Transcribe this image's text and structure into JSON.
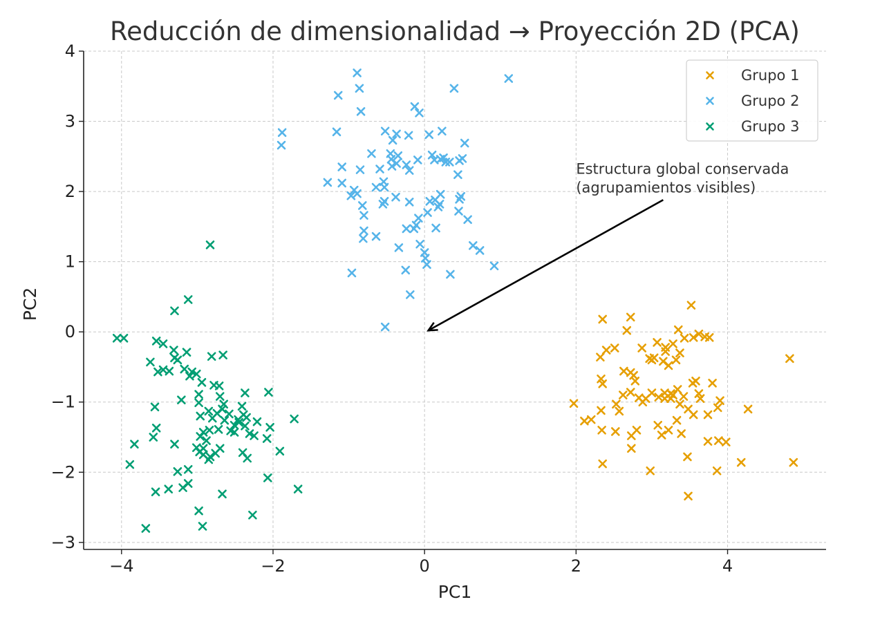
{
  "chart_data": {
    "type": "scatter",
    "title": "Reducción de dimensionalidad → Proyección 2D (PCA)",
    "xlabel": "PC1",
    "ylabel": "PC2",
    "xlim": [
      -4.5,
      5.3
    ],
    "ylim": [
      -3.1,
      4.0
    ],
    "xticks": [
      -4,
      -2,
      0,
      2,
      4
    ],
    "yticks": [
      -3,
      -2,
      -1,
      0,
      1,
      2,
      3,
      4
    ],
    "xtick_labels": [
      "−4",
      "−2",
      "0",
      "2",
      "4"
    ],
    "ytick_labels": [
      "−3",
      "−2",
      "−1",
      "0",
      "1",
      "2",
      "3",
      "4"
    ],
    "grid": true,
    "legend_position": "top-right",
    "marker": "x",
    "series": [
      {
        "name": "Grupo 1",
        "color": "#E69F00",
        "points": [
          [
            2.35,
            0.18
          ],
          [
            2.72,
            0.21
          ],
          [
            3.52,
            0.38
          ],
          [
            2.67,
            0.02
          ],
          [
            3.03,
            -0.37
          ],
          [
            2.32,
            -0.36
          ],
          [
            2.4,
            -0.26
          ],
          [
            2.51,
            -0.23
          ],
          [
            2.87,
            -0.23
          ],
          [
            3.07,
            -0.15
          ],
          [
            3.18,
            -0.22
          ],
          [
            3.35,
            0.03
          ],
          [
            3.28,
            -0.17
          ],
          [
            3.43,
            -0.09
          ],
          [
            3.55,
            -0.08
          ],
          [
            3.62,
            -0.03
          ],
          [
            3.7,
            -0.07
          ],
          [
            3.76,
            -0.08
          ],
          [
            4.82,
            -0.38
          ],
          [
            3.0,
            -0.4
          ],
          [
            3.15,
            -0.42
          ],
          [
            3.32,
            -0.4
          ],
          [
            3.37,
            -0.3
          ],
          [
            3.22,
            -0.48
          ],
          [
            2.63,
            -0.56
          ],
          [
            2.72,
            -0.58
          ],
          [
            2.76,
            -0.62
          ],
          [
            2.78,
            -0.7
          ],
          [
            2.33,
            -0.67
          ],
          [
            2.35,
            -0.74
          ],
          [
            3.54,
            -0.73
          ],
          [
            3.58,
            -0.7
          ],
          [
            3.8,
            -0.73
          ],
          [
            2.62,
            -0.9
          ],
          [
            2.72,
            -0.86
          ],
          [
            2.83,
            -0.94
          ],
          [
            2.92,
            -0.95
          ],
          [
            3.0,
            -0.87
          ],
          [
            3.09,
            -0.93
          ],
          [
            3.17,
            -0.95
          ],
          [
            3.25,
            -0.88
          ],
          [
            3.34,
            -0.82
          ],
          [
            3.42,
            -0.92
          ],
          [
            3.62,
            -0.88
          ],
          [
            3.64,
            -0.95
          ],
          [
            3.9,
            -0.98
          ],
          [
            1.97,
            -1.02
          ],
          [
            2.53,
            -1.03
          ],
          [
            2.88,
            -1.0
          ],
          [
            3.17,
            -0.87
          ],
          [
            3.28,
            -0.9
          ],
          [
            3.37,
            -1.03
          ],
          [
            3.48,
            -1.1
          ],
          [
            3.55,
            -1.18
          ],
          [
            3.74,
            -1.18
          ],
          [
            3.87,
            -1.08
          ],
          [
            4.27,
            -1.1
          ],
          [
            2.11,
            -1.27
          ],
          [
            2.2,
            -1.25
          ],
          [
            2.33,
            -1.12
          ],
          [
            2.57,
            -1.13
          ],
          [
            3.08,
            -1.33
          ],
          [
            3.13,
            -1.47
          ],
          [
            3.22,
            -1.4
          ],
          [
            3.33,
            -1.26
          ],
          [
            3.39,
            -1.45
          ],
          [
            2.34,
            -1.4
          ],
          [
            2.52,
            -1.42
          ],
          [
            2.73,
            -1.48
          ],
          [
            2.8,
            -1.4
          ],
          [
            3.74,
            -1.56
          ],
          [
            3.88,
            -1.55
          ],
          [
            3.98,
            -1.57
          ],
          [
            2.73,
            -1.66
          ],
          [
            3.47,
            -1.78
          ],
          [
            2.35,
            -1.88
          ],
          [
            4.18,
            -1.86
          ],
          [
            4.87,
            -1.86
          ],
          [
            2.98,
            -1.98
          ],
          [
            3.86,
            -1.98
          ],
          [
            3.48,
            -2.34
          ],
          [
            2.97,
            -0.38
          ],
          [
            3.18,
            -0.28
          ],
          [
            3.25,
            -0.95
          ]
        ]
      },
      {
        "name": "Grupo 2",
        "color": "#56B4E9",
        "points": [
          [
            -0.89,
            3.69
          ],
          [
            1.11,
            3.61
          ],
          [
            -0.86,
            3.47
          ],
          [
            0.39,
            3.47
          ],
          [
            -1.14,
            3.37
          ],
          [
            -0.13,
            3.21
          ],
          [
            -0.07,
            3.12
          ],
          [
            -0.84,
            3.14
          ],
          [
            -1.16,
            2.85
          ],
          [
            -0.52,
            2.86
          ],
          [
            -0.21,
            2.8
          ],
          [
            0.06,
            2.81
          ],
          [
            0.23,
            2.86
          ],
          [
            -1.88,
            2.84
          ],
          [
            -1.89,
            2.66
          ],
          [
            -0.42,
            2.73
          ],
          [
            0.53,
            2.69
          ],
          [
            -0.7,
            2.54
          ],
          [
            -0.45,
            2.54
          ],
          [
            -0.35,
            2.51
          ],
          [
            -0.37,
            2.4
          ],
          [
            -0.24,
            2.38
          ],
          [
            -0.44,
            2.46
          ],
          [
            0.1,
            2.52
          ],
          [
            0.13,
            2.45
          ],
          [
            0.21,
            2.46
          ],
          [
            0.25,
            2.48
          ],
          [
            0.28,
            2.42
          ],
          [
            0.46,
            2.44
          ],
          [
            0.33,
            2.42
          ],
          [
            -1.09,
            2.35
          ],
          [
            -0.85,
            2.31
          ],
          [
            -0.59,
            2.32
          ],
          [
            -0.2,
            2.3
          ],
          [
            -0.09,
            2.45
          ],
          [
            0.5,
            2.47
          ],
          [
            0.44,
            2.24
          ],
          [
            -1.28,
            2.13
          ],
          [
            -1.09,
            2.12
          ],
          [
            -0.54,
            2.14
          ],
          [
            -0.64,
            2.06
          ],
          [
            -0.53,
            2.06
          ],
          [
            -0.93,
            2.02
          ],
          [
            -0.97,
            1.94
          ],
          [
            -0.89,
            1.97
          ],
          [
            -0.38,
            1.92
          ],
          [
            -0.53,
            1.86
          ],
          [
            -0.55,
            1.82
          ],
          [
            -0.82,
            1.8
          ],
          [
            -0.2,
            1.85
          ],
          [
            0.07,
            1.86
          ],
          [
            0.14,
            1.88
          ],
          [
            0.2,
            1.82
          ],
          [
            0.18,
            1.78
          ],
          [
            0.21,
            1.96
          ],
          [
            0.46,
            1.89
          ],
          [
            0.45,
            1.72
          ],
          [
            0.57,
            1.6
          ],
          [
            -0.8,
            1.66
          ],
          [
            0.04,
            1.7
          ],
          [
            -0.08,
            1.62
          ],
          [
            -0.11,
            1.52
          ],
          [
            -0.14,
            1.47
          ],
          [
            -0.24,
            1.47
          ],
          [
            0.15,
            1.48
          ],
          [
            -0.8,
            1.44
          ],
          [
            -0.64,
            1.36
          ],
          [
            -0.81,
            1.33
          ],
          [
            -0.34,
            1.2
          ],
          [
            -0.06,
            1.25
          ],
          [
            0.0,
            1.13
          ],
          [
            0.01,
            1.05
          ],
          [
            0.64,
            1.23
          ],
          [
            0.73,
            1.16
          ],
          [
            0.03,
            0.96
          ],
          [
            0.92,
            0.94
          ],
          [
            -0.25,
            0.88
          ],
          [
            0.34,
            0.82
          ],
          [
            -0.96,
            0.84
          ],
          [
            -0.19,
            0.53
          ],
          [
            -0.52,
            0.07
          ],
          [
            -0.37,
            2.82
          ],
          [
            0.48,
            1.93
          ],
          [
            -0.43,
            2.36
          ]
        ]
      },
      {
        "name": "Grupo 3",
        "color": "#009E73",
        "points": [
          [
            -2.83,
            1.24
          ],
          [
            -3.12,
            0.46
          ],
          [
            -3.3,
            0.3
          ],
          [
            -4.06,
            -0.09
          ],
          [
            -3.97,
            -0.09
          ],
          [
            -3.54,
            -0.13
          ],
          [
            -3.45,
            -0.17
          ],
          [
            -3.31,
            -0.26
          ],
          [
            -3.14,
            -0.29
          ],
          [
            -2.81,
            -0.35
          ],
          [
            -2.66,
            -0.33
          ],
          [
            -3.62,
            -0.43
          ],
          [
            -3.3,
            -0.37
          ],
          [
            -3.26,
            -0.4
          ],
          [
            -3.45,
            -0.54
          ],
          [
            -3.52,
            -0.57
          ],
          [
            -3.37,
            -0.56
          ],
          [
            -3.17,
            -0.53
          ],
          [
            -3.07,
            -0.57
          ],
          [
            -3.01,
            -0.6
          ],
          [
            -3.1,
            -0.63
          ],
          [
            -2.94,
            -0.72
          ],
          [
            -2.78,
            -0.76
          ],
          [
            -2.71,
            -0.77
          ],
          [
            -2.7,
            -0.92
          ],
          [
            -2.98,
            -0.89
          ],
          [
            -3.21,
            -0.97
          ],
          [
            -2.98,
            -1.01
          ],
          [
            -2.67,
            -1.1
          ],
          [
            -2.65,
            -1.03
          ],
          [
            -2.41,
            -1.06
          ],
          [
            -2.39,
            -1.18
          ],
          [
            -2.06,
            -0.86
          ],
          [
            -2.37,
            -0.87
          ],
          [
            -3.56,
            -1.07
          ],
          [
            -2.85,
            -1.13
          ],
          [
            -2.74,
            -1.16
          ],
          [
            -2.58,
            -1.17
          ],
          [
            -2.46,
            -1.25
          ],
          [
            -2.35,
            -1.22
          ],
          [
            -2.96,
            -1.2
          ],
          [
            -2.8,
            -1.23
          ],
          [
            -2.64,
            -1.26
          ],
          [
            -2.51,
            -1.33
          ],
          [
            -2.45,
            -1.29
          ],
          [
            -2.37,
            -1.34
          ],
          [
            -2.21,
            -1.28
          ],
          [
            -2.04,
            -1.36
          ],
          [
            -1.72,
            -1.24
          ],
          [
            -3.54,
            -1.37
          ],
          [
            -3.58,
            -1.5
          ],
          [
            -2.92,
            -1.43
          ],
          [
            -2.84,
            -1.4
          ],
          [
            -2.72,
            -1.39
          ],
          [
            -2.56,
            -1.41
          ],
          [
            -2.51,
            -1.43
          ],
          [
            -2.31,
            -1.45
          ],
          [
            -2.25,
            -1.48
          ],
          [
            -2.08,
            -1.52
          ],
          [
            -2.96,
            -1.49
          ],
          [
            -2.88,
            -1.55
          ],
          [
            -3.83,
            -1.6
          ],
          [
            -3.3,
            -1.6
          ],
          [
            -3.01,
            -1.65
          ],
          [
            -2.92,
            -1.66
          ],
          [
            -2.7,
            -1.66
          ],
          [
            -2.76,
            -1.73
          ],
          [
            -2.83,
            -1.78
          ],
          [
            -2.92,
            -1.75
          ],
          [
            -2.85,
            -1.82
          ],
          [
            -2.97,
            -1.71
          ],
          [
            -2.4,
            -1.72
          ],
          [
            -2.34,
            -1.8
          ],
          [
            -1.91,
            -1.7
          ],
          [
            -3.89,
            -1.89
          ],
          [
            -3.26,
            -1.99
          ],
          [
            -3.12,
            -1.96
          ],
          [
            -2.07,
            -2.08
          ],
          [
            -3.12,
            -2.16
          ],
          [
            -3.19,
            -2.22
          ],
          [
            -3.38,
            -2.24
          ],
          [
            -3.55,
            -2.28
          ],
          [
            -2.67,
            -2.31
          ],
          [
            -1.67,
            -2.24
          ],
          [
            -2.98,
            -2.55
          ],
          [
            -2.27,
            -2.61
          ],
          [
            -2.93,
            -2.77
          ],
          [
            -3.68,
            -2.8
          ]
        ]
      }
    ],
    "annotation": {
      "text_lines": [
        "Estructura global conservada",
        "(agrupamientos visibles)"
      ],
      "text_x": 2.0,
      "text_y": 2.25,
      "tail": [
        3.15,
        1.88
      ],
      "head": [
        0.05,
        0.02
      ]
    }
  }
}
